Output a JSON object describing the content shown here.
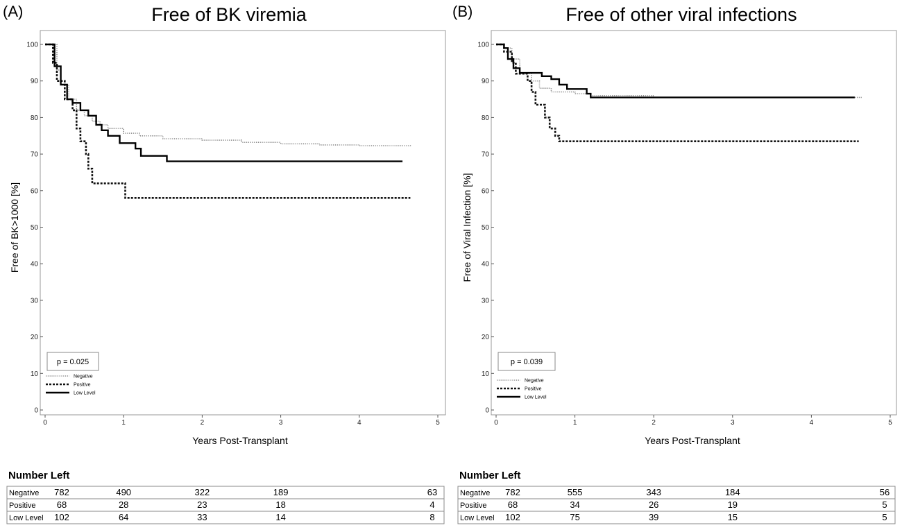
{
  "panels": [
    {
      "label": "(A)",
      "title": "Free of BK viremia",
      "xlabel": "Years Post-Transplant",
      "ylabel": "Free of BK>1000 [%]",
      "p_value": "p = 0.025",
      "number_left_title": "Number Left"
    },
    {
      "label": "(B)",
      "title": "Free of other viral infections",
      "xlabel": "Years Post-Transplant",
      "ylabel": "Free of Viral Infection [%]",
      "p_value": "p = 0.039",
      "number_left_title": "Number Left"
    }
  ],
  "chart_data": [
    {
      "type": "line",
      "subtype": "kaplan-meier step curves",
      "title": "Free of BK viremia",
      "xlabel": "Years Post-Transplant",
      "ylabel": "Free of BK>1000 [%]",
      "xlim": [
        0,
        5
      ],
      "ylim": [
        0,
        100
      ],
      "xticks": [
        0,
        1,
        2,
        3,
        4,
        5
      ],
      "yticks": [
        0,
        10,
        20,
        30,
        40,
        50,
        60,
        70,
        80,
        90,
        100
      ],
      "grid": false,
      "legend_position": "bottom-left",
      "annotation": "p = 0.025",
      "series": [
        {
          "name": "Negative",
          "style": "dotted",
          "color": "#8a8a8a",
          "points": [
            [
              0,
              100
            ],
            [
              0.1,
              100
            ],
            [
              0.15,
              93
            ],
            [
              0.2,
              89
            ],
            [
              0.3,
              85
            ],
            [
              0.4,
              82
            ],
            [
              0.5,
              80.5
            ],
            [
              0.6,
              79
            ],
            [
              0.7,
              78
            ],
            [
              0.8,
              77
            ],
            [
              1.0,
              75.7
            ],
            [
              1.2,
              75
            ],
            [
              1.5,
              74.2
            ],
            [
              2.0,
              73.8
            ],
            [
              2.5,
              73.2
            ],
            [
              3.0,
              72.8
            ],
            [
              3.5,
              72.5
            ],
            [
              4.0,
              72.3
            ],
            [
              4.65,
              72.2
            ]
          ]
        },
        {
          "name": "Positive",
          "style": "dashed",
          "color": "#111111",
          "points": [
            [
              0,
              100
            ],
            [
              0.08,
              100
            ],
            [
              0.1,
              95
            ],
            [
              0.15,
              90
            ],
            [
              0.25,
              85
            ],
            [
              0.35,
              82
            ],
            [
              0.4,
              77
            ],
            [
              0.45,
              73.5
            ],
            [
              0.5,
              73.5
            ],
            [
              0.52,
              70
            ],
            [
              0.55,
              66
            ],
            [
              0.6,
              62
            ],
            [
              0.65,
              62
            ],
            [
              1.0,
              62
            ],
            [
              1.02,
              58
            ],
            [
              4.65,
              58
            ]
          ]
        },
        {
          "name": "Low Level",
          "style": "solid",
          "color": "#000000",
          "points": [
            [
              0,
              100
            ],
            [
              0.1,
              100
            ],
            [
              0.12,
              94
            ],
            [
              0.2,
              89
            ],
            [
              0.28,
              85
            ],
            [
              0.35,
              84
            ],
            [
              0.45,
              82
            ],
            [
              0.55,
              80.5
            ],
            [
              0.65,
              78
            ],
            [
              0.72,
              76.5
            ],
            [
              0.8,
              75
            ],
            [
              0.95,
              73
            ],
            [
              1.15,
              71.5
            ],
            [
              1.22,
              69.5
            ],
            [
              1.45,
              69.5
            ],
            [
              1.55,
              68
            ],
            [
              4.55,
              68
            ]
          ]
        }
      ],
      "table": {
        "title": "Number Left",
        "rows": [
          {
            "label": "Negative",
            "values": [
              "782",
              "490",
              "322",
              "189",
              "63"
            ]
          },
          {
            "label": "Positive",
            "values": [
              "68",
              "28",
              "23",
              "18",
              "4"
            ]
          },
          {
            "label": "Low Level",
            "values": [
              "102",
              "64",
              "33",
              "14",
              "8"
            ]
          }
        ]
      }
    },
    {
      "type": "line",
      "subtype": "kaplan-meier step curves",
      "title": "Free of other viral infections",
      "xlabel": "Years Post-Transplant",
      "ylabel": "Free of Viral Infection [%]",
      "xlim": [
        0,
        5
      ],
      "ylim": [
        0,
        100
      ],
      "xticks": [
        0,
        1,
        2,
        3,
        4,
        5
      ],
      "yticks": [
        0,
        10,
        20,
        30,
        40,
        50,
        60,
        70,
        80,
        90,
        100
      ],
      "grid": false,
      "legend_position": "bottom-left",
      "annotation": "p = 0.039",
      "series": [
        {
          "name": "Negative",
          "style": "dotted",
          "color": "#8a8a8a",
          "points": [
            [
              0,
              100
            ],
            [
              0.1,
              99
            ],
            [
              0.2,
              96
            ],
            [
              0.3,
              92
            ],
            [
              0.45,
              90
            ],
            [
              0.55,
              88
            ],
            [
              0.7,
              87
            ],
            [
              1.0,
              86.5
            ],
            [
              1.2,
              86
            ],
            [
              2.0,
              85.5
            ],
            [
              4.65,
              85.5
            ]
          ]
        },
        {
          "name": "Positive",
          "style": "dashed",
          "color": "#111111",
          "points": [
            [
              0,
              100
            ],
            [
              0.1,
              98
            ],
            [
              0.2,
              95
            ],
            [
              0.25,
              92
            ],
            [
              0.4,
              90
            ],
            [
              0.45,
              87
            ],
            [
              0.5,
              83.5
            ],
            [
              0.6,
              83.5
            ],
            [
              0.62,
              80
            ],
            [
              0.68,
              77
            ],
            [
              0.75,
              75
            ],
            [
              0.8,
              73.5
            ],
            [
              4.6,
              73.5
            ]
          ]
        },
        {
          "name": "Low Level",
          "style": "solid",
          "color": "#000000",
          "points": [
            [
              0,
              100
            ],
            [
              0.1,
              99
            ],
            [
              0.15,
              96
            ],
            [
              0.22,
              93.5
            ],
            [
              0.3,
              92.2
            ],
            [
              0.5,
              92.2
            ],
            [
              0.58,
              91.3
            ],
            [
              0.7,
              90.5
            ],
            [
              0.8,
              89
            ],
            [
              0.9,
              87.8
            ],
            [
              1.1,
              87.8
            ],
            [
              1.15,
              86.5
            ],
            [
              1.2,
              85.5
            ],
            [
              4.55,
              85.5
            ]
          ]
        }
      ],
      "table": {
        "title": "Number Left",
        "rows": [
          {
            "label": "Negative",
            "values": [
              "782",
              "555",
              "343",
              "184",
              "56"
            ]
          },
          {
            "label": "Positive",
            "values": [
              "68",
              "34",
              "26",
              "19",
              "5"
            ]
          },
          {
            "label": "Low Level",
            "values": [
              "102",
              "75",
              "39",
              "15",
              "5"
            ]
          }
        ]
      }
    }
  ]
}
